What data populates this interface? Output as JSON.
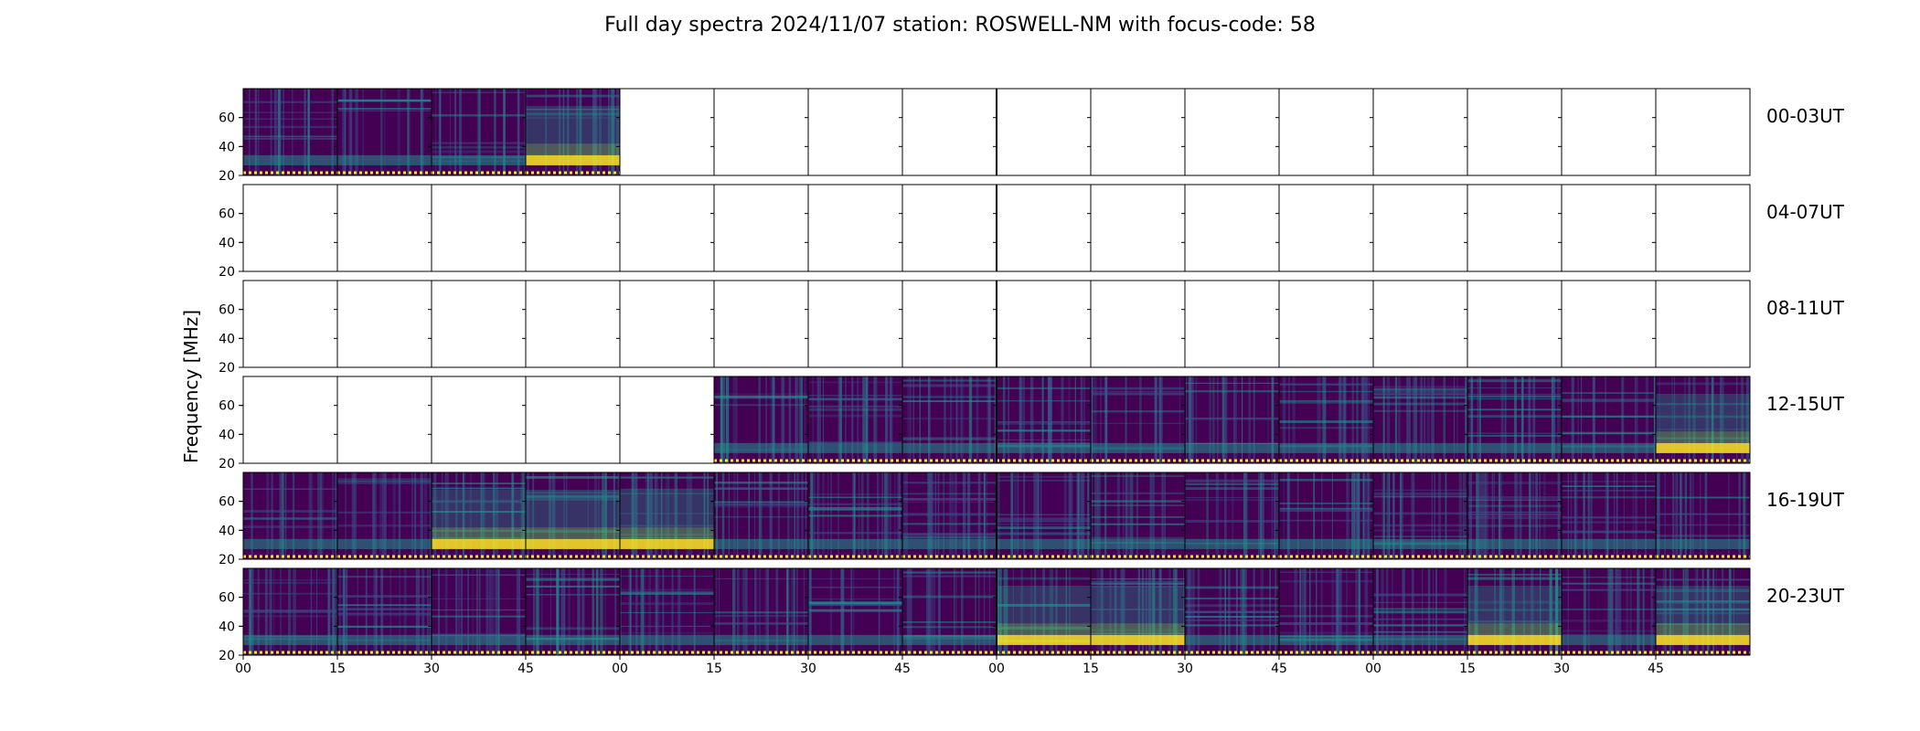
{
  "chart_data": {
    "type": "heatmap",
    "title": "Full day spectra 2024/11/07 station: ROSWELL-NM with focus-code: 58",
    "ylabel": "Frequency [MHz]",
    "ylim": [
      20,
      80
    ],
    "y_ticks": [
      "20",
      "40",
      "60"
    ],
    "x_ticks": [
      "00",
      "15",
      "30",
      "45",
      "00",
      "15",
      "30",
      "45",
      "00",
      "15",
      "30",
      "45",
      "00",
      "15",
      "30",
      "45"
    ],
    "colormap": [
      "#440154",
      "#3b528b",
      "#21918c",
      "#5ec962",
      "#fde725"
    ],
    "panels_per_row": 16,
    "panel_minutes": 15,
    "rows": [
      {
        "label": "00-03UT",
        "panels": [
          1,
          1,
          1,
          2,
          0,
          0,
          0,
          0,
          0,
          0,
          0,
          0,
          0,
          0,
          0,
          0
        ]
      },
      {
        "label": "04-07UT",
        "panels": [
          0,
          0,
          0,
          0,
          0,
          0,
          0,
          0,
          0,
          0,
          0,
          0,
          0,
          0,
          0,
          0
        ]
      },
      {
        "label": "08-11UT",
        "panels": [
          0,
          0,
          0,
          0,
          0,
          0,
          0,
          0,
          0,
          0,
          0,
          0,
          0,
          0,
          0,
          0
        ]
      },
      {
        "label": "12-15UT",
        "panels": [
          0,
          0,
          0,
          0,
          0,
          1,
          1,
          1,
          1,
          1,
          1,
          1,
          1,
          1,
          1,
          2
        ]
      },
      {
        "label": "16-19UT",
        "panels": [
          1,
          1,
          2,
          2,
          2,
          1,
          1,
          1,
          1,
          1,
          1,
          1,
          1,
          1,
          1,
          1
        ]
      },
      {
        "label": "20-23UT",
        "panels": [
          1,
          1,
          1,
          1,
          1,
          1,
          1,
          1,
          2,
          2,
          1,
          1,
          1,
          2,
          1,
          2
        ]
      }
    ]
  }
}
